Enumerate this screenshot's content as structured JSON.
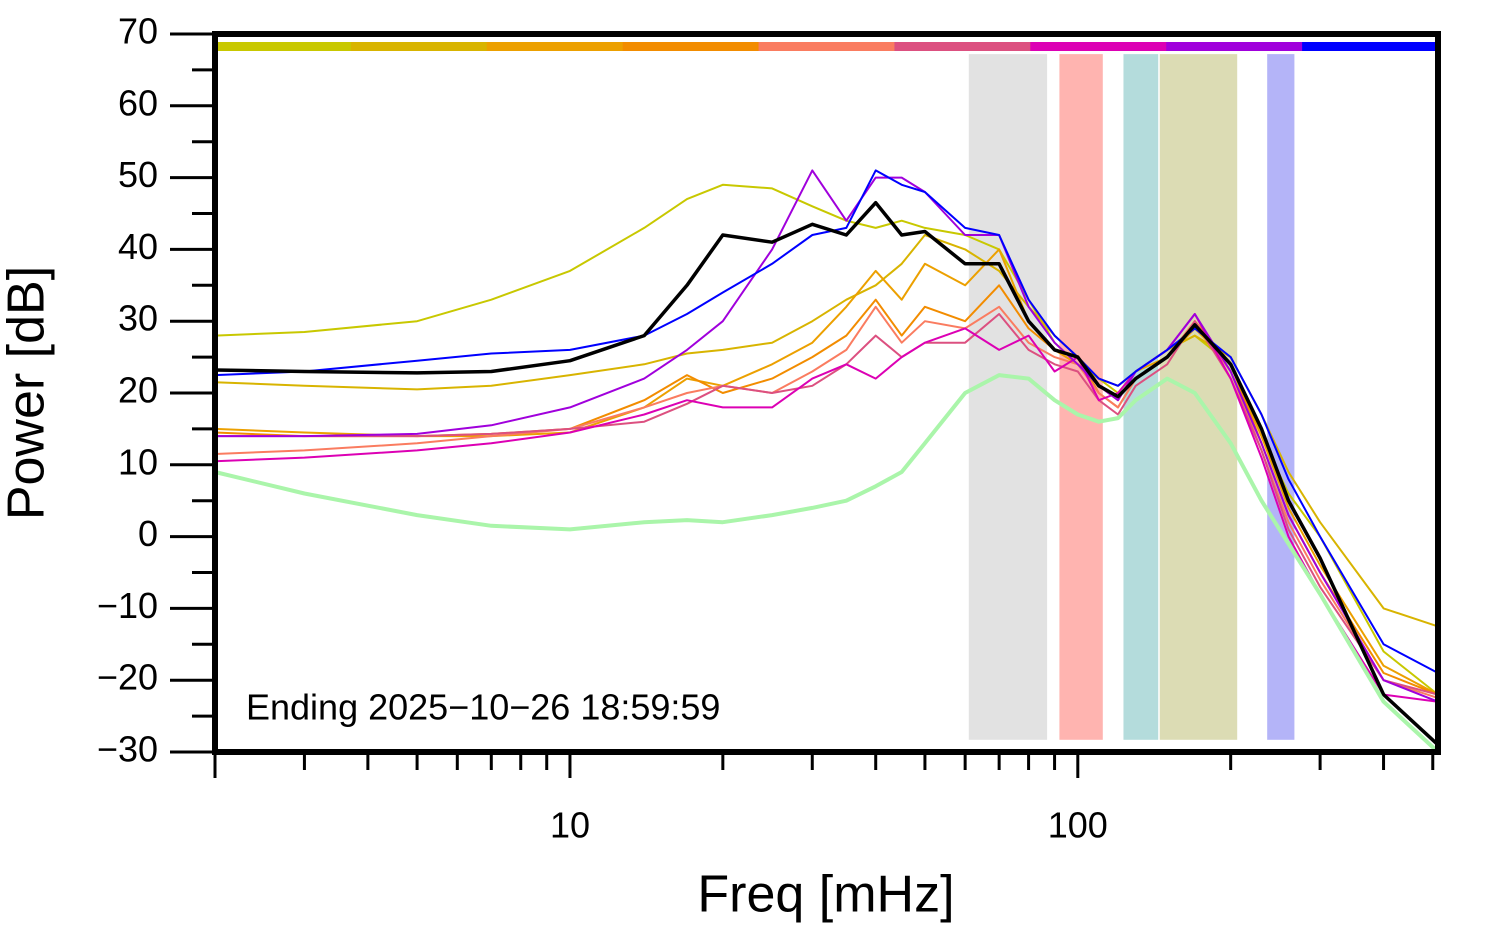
{
  "chart_data": {
    "type": "line",
    "xlabel": "Freq [mHz]",
    "ylabel": "Power [dB]",
    "annotation": "Ending 2025−10−26 18:59:59",
    "xscale": "log",
    "xlim": [
      2,
      512
    ],
    "ylim": [
      -30,
      70
    ],
    "xticks": [
      10,
      100
    ],
    "xminorticks": [
      3,
      4,
      5,
      6,
      7,
      8,
      9,
      20,
      30,
      40,
      50,
      60,
      70,
      80,
      90,
      200,
      300,
      400,
      500
    ],
    "yticks": [
      {
        "value": -30,
        "label": "−30"
      },
      {
        "value": -20,
        "label": "−20"
      },
      {
        "value": -10,
        "label": "−10"
      },
      0,
      10,
      20,
      30,
      40,
      50,
      60,
      70
    ],
    "yminorticks": [
      -25,
      -15,
      -5,
      5,
      15,
      25,
      35,
      45,
      55,
      65
    ],
    "strip_colors": [
      "#c8c800",
      "#d8b400",
      "#eca000",
      "#f28c00",
      "#fa7c60",
      "#dc5080",
      "#dc00b4",
      "#a000dc",
      "#0000ff"
    ],
    "band_ylim": [
      -28.3,
      67.2
    ],
    "bands": [
      {
        "x": [
          61,
          87
        ],
        "color": "#e2e2e2"
      },
      {
        "x": [
          92,
          112
        ],
        "color": "#ffb4b0"
      },
      {
        "x": [
          123,
          144
        ],
        "color": "#b4dcdc"
      },
      {
        "x": [
          145,
          206
        ],
        "color": "#dcdcb4"
      },
      {
        "x": [
          236,
          267
        ],
        "color": "#b4b4f8"
      }
    ],
    "x": [
      2,
      3,
      5,
      7,
      10,
      14,
      17,
      20,
      25,
      30,
      35,
      40,
      45,
      50,
      60,
      70,
      80,
      90,
      100,
      110,
      120,
      130,
      150,
      170,
      200,
      230,
      260,
      300,
      400,
      512
    ],
    "series": [
      {
        "color": "#c8c800",
        "width": 2,
        "values": [
          28,
          28.5,
          30,
          33,
          37,
          43,
          47,
          49,
          48.5,
          46,
          44,
          43,
          44,
          43,
          42,
          40,
          33,
          27,
          24,
          22,
          20,
          23,
          26,
          28,
          24,
          14,
          6,
          0,
          -16,
          -22
        ]
      },
      {
        "color": "#d8b400",
        "width": 2,
        "values": [
          21.5,
          21,
          20.5,
          21,
          22.5,
          24,
          25.5,
          26,
          27,
          30,
          33,
          35,
          38,
          42,
          40,
          37,
          32,
          28,
          25,
          22,
          21,
          23,
          26,
          28,
          25,
          17,
          9,
          2,
          -10,
          -12.5
        ]
      },
      {
        "color": "#eca000",
        "width": 2,
        "values": [
          15,
          14.5,
          14,
          14,
          14.5,
          18,
          22,
          21,
          24,
          27,
          32,
          37,
          33,
          38,
          35,
          40,
          30,
          26,
          24,
          21,
          19,
          23,
          25,
          29,
          24,
          14,
          4,
          -4,
          -18,
          -22
        ]
      },
      {
        "color": "#f28c00",
        "width": 2,
        "values": [
          14.5,
          14,
          14,
          14.3,
          15,
          19,
          22.5,
          20,
          22,
          25,
          28,
          33,
          28,
          32,
          30,
          35,
          29,
          26,
          25,
          20,
          18,
          22,
          25,
          30,
          24,
          13,
          3,
          -5,
          -19,
          -22
        ]
      },
      {
        "color": "#fa7c60",
        "width": 2,
        "values": [
          11.5,
          12,
          13,
          14,
          15,
          18,
          20,
          21,
          20,
          23,
          26,
          32,
          27,
          30,
          29,
          32,
          27,
          25,
          24,
          20,
          18,
          22,
          25,
          30,
          23,
          12,
          2,
          -6,
          -20,
          -22.5
        ]
      },
      {
        "color": "#dc5080",
        "width": 2,
        "values": [
          14,
          14,
          14,
          14.3,
          15,
          16,
          18.5,
          21,
          20,
          21,
          24,
          28,
          25,
          27,
          27,
          31,
          26,
          24,
          23,
          19,
          17,
          21,
          24,
          30,
          22,
          12,
          1,
          -7,
          -20,
          -22
        ]
      },
      {
        "color": "#dc00b4",
        "width": 2,
        "values": [
          10.5,
          11,
          12,
          13,
          14.5,
          17,
          19,
          18,
          18,
          22,
          24,
          22,
          25,
          27,
          29,
          26,
          28,
          23,
          25,
          19,
          20,
          23,
          26,
          31,
          22,
          11,
          0,
          -8,
          -22,
          -23
        ]
      },
      {
        "color": "#a000dc",
        "width": 2,
        "values": [
          14,
          14,
          14.3,
          15.5,
          18,
          22,
          26,
          30,
          40,
          51,
          44,
          50,
          50,
          48,
          42,
          42,
          32,
          27,
          24,
          21,
          19,
          23,
          26,
          31,
          23,
          13,
          3,
          -5,
          -20,
          -23
        ]
      },
      {
        "color": "#0000ff",
        "width": 2,
        "values": [
          22.5,
          23,
          24.5,
          25.5,
          26,
          28,
          31,
          34,
          38,
          42,
          43,
          51,
          49,
          48,
          43,
          42,
          33,
          28,
          25,
          22,
          21,
          23,
          26,
          29,
          25,
          17,
          8,
          0,
          -15,
          -19
        ]
      },
      {
        "color": "#000000",
        "width": 3.5,
        "values": [
          23.2,
          23,
          22.8,
          23,
          24.5,
          28,
          35,
          42,
          41,
          43.5,
          42,
          46.5,
          42,
          42.5,
          38,
          38,
          30,
          26,
          25,
          21,
          19.5,
          22,
          25,
          29.5,
          24,
          15,
          5,
          -3,
          -22,
          -29
        ]
      },
      {
        "color": "#aaf5aa",
        "width": 4,
        "values": [
          9,
          6,
          3,
          1.5,
          1,
          2,
          2.3,
          2,
          3,
          4,
          5,
          7,
          9,
          13,
          20,
          22.5,
          22,
          19,
          17,
          16,
          16.5,
          19,
          22,
          20,
          13,
          5,
          -1,
          -8,
          -23,
          -30
        ]
      }
    ]
  }
}
